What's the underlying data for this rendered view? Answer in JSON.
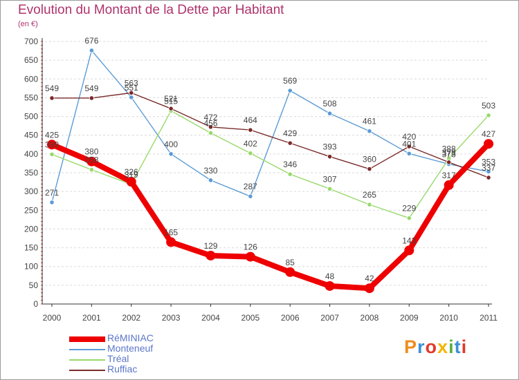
{
  "header": {
    "title": "Evolution du Montant de la Dette par Habitant",
    "unit": "(en €)"
  },
  "logo": {
    "text": "Proxiti",
    "colors": [
      "#f08c1d",
      "#3b8fd6",
      "#e2382a",
      "#f5b400",
      "#5aae3c",
      "#3b8fd6",
      "#e2382a"
    ]
  },
  "chart_data": {
    "type": "line",
    "title": "Evolution du Montant de la Dette par Habitant",
    "ylabel": "(en €)",
    "xlabel": "",
    "categories": [
      "2000",
      "2001",
      "2002",
      "2003",
      "2004",
      "2005",
      "2006",
      "2007",
      "2008",
      "2009",
      "2010",
      "2011"
    ],
    "ylim": [
      0,
      700
    ],
    "yticks": [
      0,
      50,
      100,
      150,
      200,
      250,
      300,
      350,
      400,
      450,
      500,
      550,
      600,
      650,
      700
    ],
    "grid": "horizontal",
    "legend_position": "bottom-left",
    "series": [
      {
        "name": "Monteneuf",
        "color": "#5b9bd5",
        "values": [
          271,
          676,
          551,
          400,
          330,
          287,
          569,
          508,
          461,
          401,
          373,
          353
        ]
      },
      {
        "name": "Tréal",
        "color": "#98d96a",
        "values": [
          399,
          358,
          319,
          515,
          456,
          402,
          346,
          307,
          265,
          229,
          388,
          503
        ]
      },
      {
        "name": "Ruffiac",
        "color": "#7a2a2a",
        "values": [
          549,
          549,
          563,
          521,
          472,
          464,
          429,
          393,
          360,
          420,
          378,
          337
        ]
      },
      {
        "name": "RéMINIAC",
        "color": "#ee0000",
        "emphasis": true,
        "values": [
          425,
          380,
          326,
          165,
          129,
          126,
          85,
          48,
          42,
          143,
          317,
          427
        ]
      }
    ],
    "legend_order": [
      "RéMINIAC",
      "Monteneuf",
      "Tréal",
      "Ruffiac"
    ]
  }
}
